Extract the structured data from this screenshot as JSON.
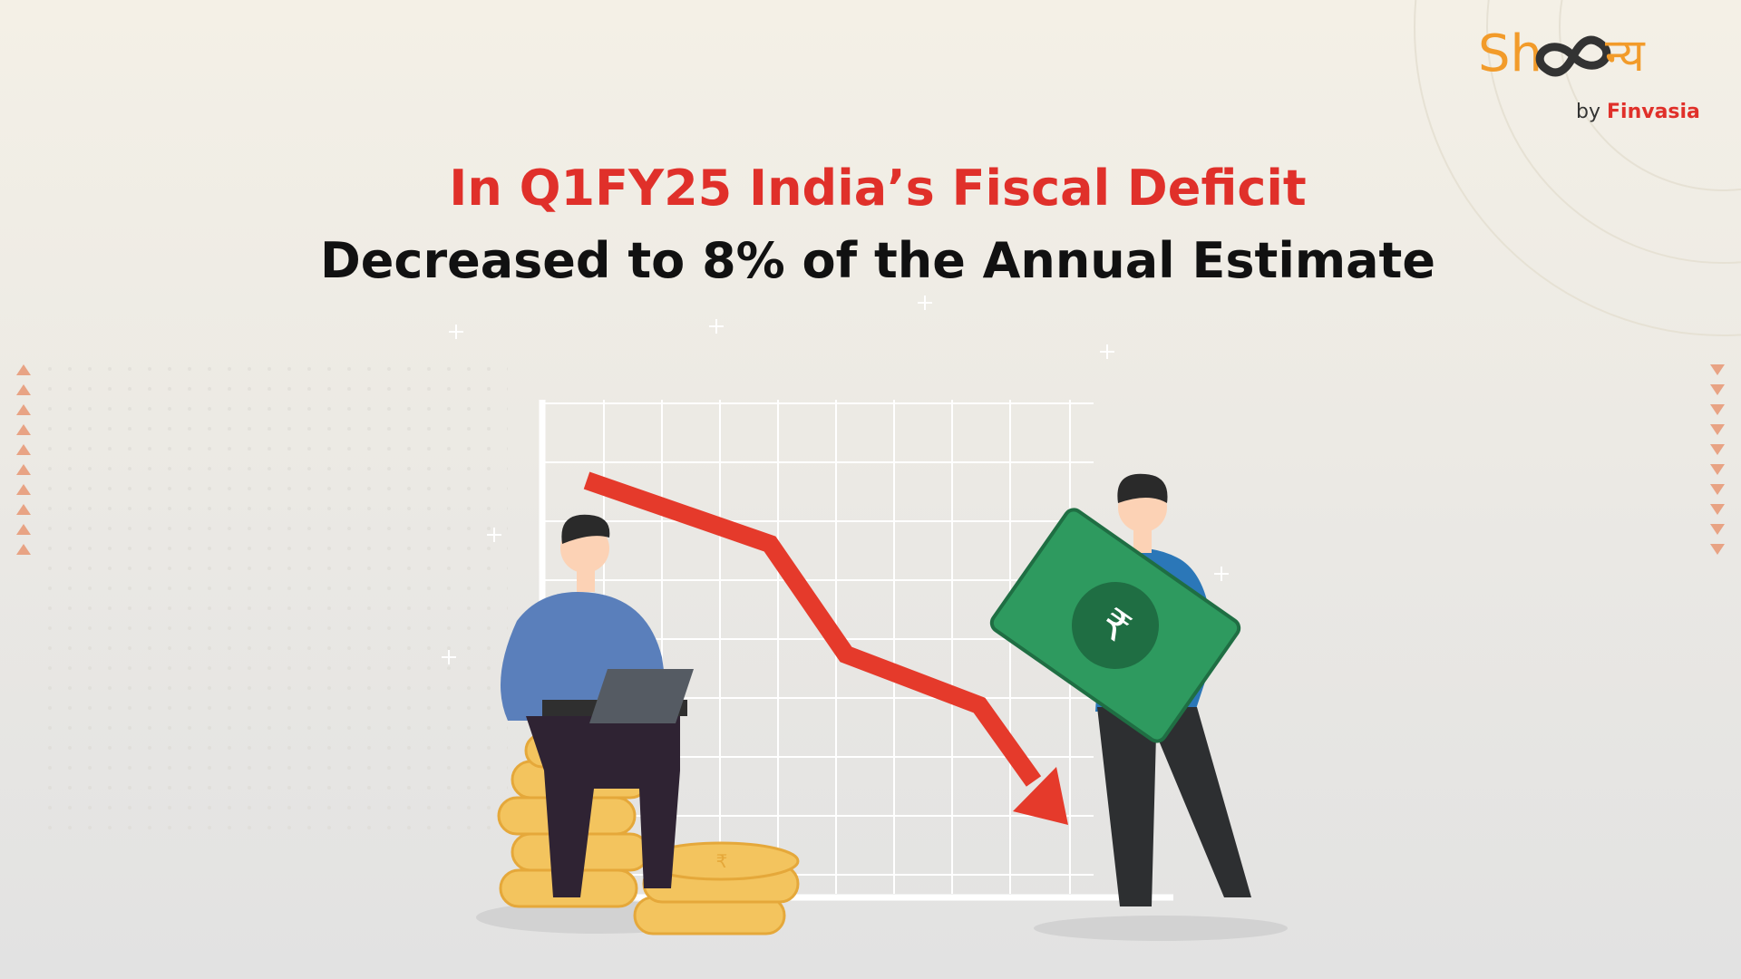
{
  "logo": {
    "brand_start": "Sh",
    "brand_end": "न्य",
    "by": "by",
    "company": "Finvasia"
  },
  "headline": {
    "line1": "In Q1FY25 India’s Fiscal Deficit",
    "line2": "Decreased to 8% of the Annual Estimate"
  }
}
